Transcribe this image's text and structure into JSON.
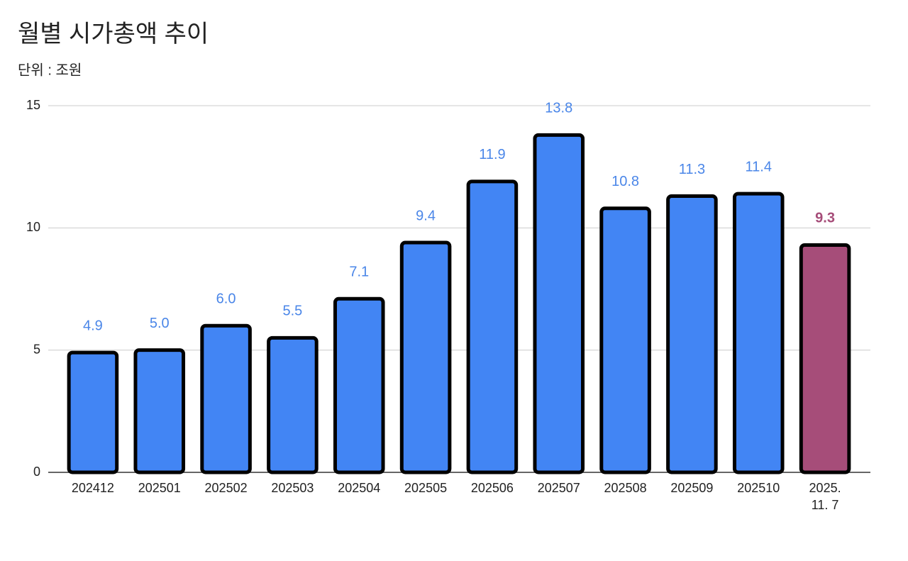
{
  "chart_data": {
    "type": "bar",
    "title": "월별 시가총액 추이",
    "subtitle": "단위 : 조원",
    "categories": [
      "202412",
      "202501",
      "202502",
      "202503",
      "202504",
      "202505",
      "202506",
      "202507",
      "202508",
      "202509",
      "202510",
      "2025.\n11. 7"
    ],
    "values": [
      4.9,
      5,
      6,
      5.5,
      7.1,
      9.4,
      11.9,
      13.8,
      10.8,
      11.3,
      11.4,
      9.3
    ],
    "value_labels": [
      "4.9",
      "5.0",
      "6.0",
      "5.5",
      "7.1",
      "9.4",
      "11.9",
      "13.8",
      "10.8",
      "11.3",
      "11.4",
      "9.3"
    ],
    "colors": [
      "#4285f4",
      "#4285f4",
      "#4285f4",
      "#4285f4",
      "#4285f4",
      "#4285f4",
      "#4285f4",
      "#4285f4",
      "#4285f4",
      "#4285f4",
      "#4285f4",
      "#a64d79"
    ],
    "value_label_colors": [
      "#4a86e8",
      "#4a86e8",
      "#4a86e8",
      "#4a86e8",
      "#4a86e8",
      "#4a86e8",
      "#4a86e8",
      "#4a86e8",
      "#4a86e8",
      "#4a86e8",
      "#4a86e8",
      "#a64d79"
    ],
    "value_label_bold": [
      false,
      false,
      false,
      false,
      false,
      false,
      false,
      false,
      false,
      false,
      false,
      true
    ],
    "ylim": [
      0,
      15
    ],
    "yticks": [
      0,
      5,
      10,
      15
    ],
    "grid": true
  }
}
